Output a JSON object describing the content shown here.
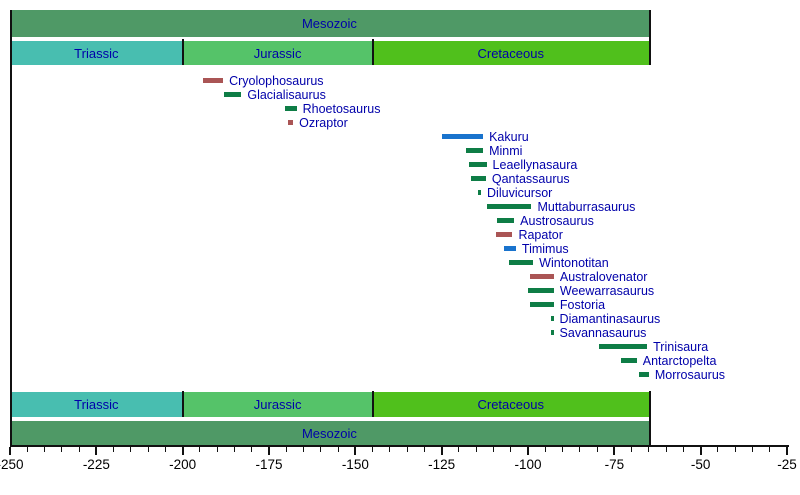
{
  "chart_data": {
    "type": "bar",
    "subtype": "horizontal-timeline-gantt",
    "description_of_units": "geologic time, millions of years (negative = Ma before present)",
    "grid": "off",
    "legend": "none",
    "axis": {
      "min": -250,
      "max": -25,
      "major_tick_step": 25,
      "minor_tick_step": 5,
      "major_tick_labels": [
        "-250",
        "-225",
        "-200",
        "-175",
        "-150",
        "-125",
        "-100",
        "-75",
        "-50",
        "-25"
      ]
    },
    "colors": {
      "label_text": "#0000AA",
      "tick_text": "#000000",
      "axis_line": "#111111",
      "green": "#0E7D46",
      "red_brown": "#AA5555",
      "blue": "#1973CD"
    },
    "eras": [
      {
        "name": "Mesozoic",
        "start": -250,
        "end": -65,
        "color": "#4F9966"
      }
    ],
    "periods": [
      {
        "name": "Triassic",
        "start": -250,
        "end": -200,
        "color": "#48BEB0"
      },
      {
        "name": "Jurassic",
        "start": -200,
        "end": -145,
        "color": "#55C369"
      },
      {
        "name": "Cretaceous",
        "start": -145,
        "end": -65,
        "color": "#50C01C"
      }
    ],
    "taxa": [
      {
        "name": "Cryolophosaurus",
        "start": -194,
        "end": -188.3,
        "color": "#AA5555"
      },
      {
        "name": "Glacialisaurus",
        "start": -188,
        "end": -183,
        "color": "#0E7D46"
      },
      {
        "name": "Rhoetosaurus",
        "start": -170.5,
        "end": -167,
        "color": "#0E7D46"
      },
      {
        "name": "Ozraptor",
        "start": -169.5,
        "end": -168,
        "color": "#AA5555"
      },
      {
        "name": "Kakuru",
        "start": -125,
        "end": -113,
        "color": "#1973CD"
      },
      {
        "name": "Minmi",
        "start": -118,
        "end": -113,
        "color": "#0E7D46"
      },
      {
        "name": "Leaellynasaura",
        "start": -117,
        "end": -112,
        "color": "#0E7D46"
      },
      {
        "name": "Qantassaurus",
        "start": -116.5,
        "end": -112.2,
        "color": "#0E7D46"
      },
      {
        "name": "Diluvicursor",
        "start": -114.4,
        "end": -113.6,
        "color": "#0E7D46"
      },
      {
        "name": "Muttaburrasaurus",
        "start": -112,
        "end": -99,
        "color": "#0E7D46"
      },
      {
        "name": "Austrosaurus",
        "start": -109,
        "end": -104,
        "color": "#0E7D46"
      },
      {
        "name": "Rapator",
        "start": -109.3,
        "end": -104.5,
        "color": "#AA5555"
      },
      {
        "name": "Timimus",
        "start": -107,
        "end": -103.5,
        "color": "#1973CD"
      },
      {
        "name": "Wintonotitan",
        "start": -105.5,
        "end": -98.5,
        "color": "#0E7D46"
      },
      {
        "name": "Australovenator",
        "start": -99.5,
        "end": -92.5,
        "color": "#AA5555"
      },
      {
        "name": "Weewarrasaurus",
        "start": -100,
        "end": -92.5,
        "color": "#0E7D46"
      },
      {
        "name": "Fostoria",
        "start": -99.5,
        "end": -92.5,
        "color": "#0E7D46"
      },
      {
        "name": "Diamantinasaurus",
        "start": -93.4,
        "end": -92.6,
        "color": "#0E7D46"
      },
      {
        "name": "Savannasaurus",
        "start": -93.4,
        "end": -92.6,
        "color": "#0E7D46"
      },
      {
        "name": "Trinisaura",
        "start": -79.5,
        "end": -65.5,
        "color": "#0E7D46"
      },
      {
        "name": "Antarctopelta",
        "start": -73,
        "end": -68.5,
        "color": "#0E7D46"
      },
      {
        "name": "Morrosaurus",
        "start": -68,
        "end": -65,
        "color": "#0E7D46"
      }
    ]
  }
}
